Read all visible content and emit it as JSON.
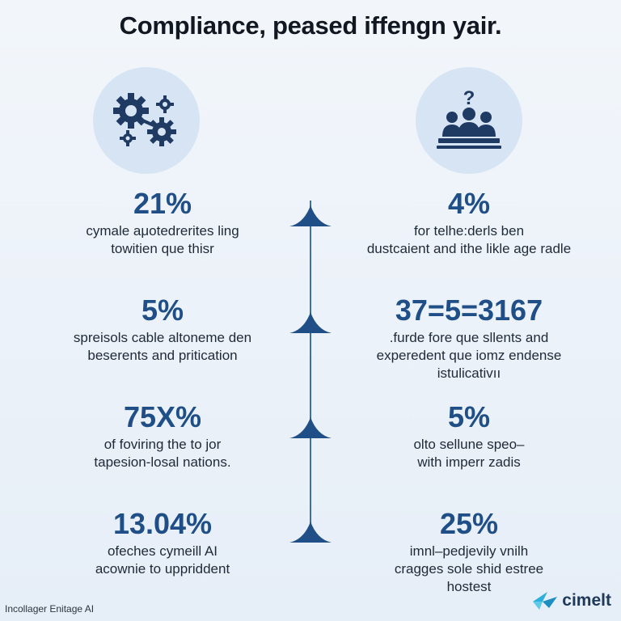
{
  "title": "Compliance, peased iffengn yair.",
  "icons": {
    "left": "gears-icon",
    "right": "group-question-icon"
  },
  "stats": [
    {
      "value": "21%",
      "desc": "cymale aμotedrerites ling\ntowitien que thisr"
    },
    {
      "value": "4%",
      "desc": "for telhe:derls ben\ndustcaient and ithe likle age radle"
    },
    {
      "value": "5%",
      "desc": "spreisols cable altoneme den\nbeserents and pritication"
    },
    {
      "value": "37=5=3167",
      "desc": ".furde fore que sllents and\nexperedent que iomz endense\nistulicativıı"
    },
    {
      "value": "75X%",
      "desc": "of foviring the to jor\ntapesion-losal nations."
    },
    {
      "value": "5%",
      "desc": "olto sellune speo–\nwith imperr zadis"
    },
    {
      "value": "13.04%",
      "desc": "ofeches cymeill AI\nacownie to uppriddent"
    },
    {
      "value": "25%",
      "desc": "imnl–pedjevily vnilh\ncragges sole shid estree\nhostest"
    }
  ],
  "footer": "Incollager Enitage AI",
  "brand": {
    "name": "cimelt",
    "logo": "bird-logo-icon"
  },
  "colors": {
    "accent": "#1f4f86",
    "circle": "#d6e4f3",
    "icon": "#1f3a63"
  }
}
